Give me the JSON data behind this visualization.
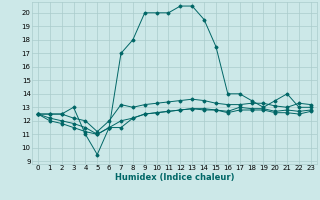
{
  "xlabel": "Humidex (Indice chaleur)",
  "background_color": "#cce8e8",
  "grid_color": "#aacccc",
  "line_color": "#006666",
  "xlim": [
    -0.5,
    23.5
  ],
  "ylim": [
    8.8,
    20.8
  ],
  "yticks": [
    9,
    10,
    11,
    12,
    13,
    14,
    15,
    16,
    17,
    18,
    19,
    20
  ],
  "xticks": [
    0,
    1,
    2,
    3,
    4,
    5,
    6,
    7,
    8,
    9,
    10,
    11,
    12,
    13,
    14,
    15,
    16,
    17,
    18,
    19,
    20,
    21,
    22,
    23
  ],
  "series": [
    {
      "x": [
        0,
        1,
        2,
        3,
        4,
        5,
        6,
        7,
        8,
        9,
        10,
        11,
        12,
        13,
        14,
        15,
        16,
        17,
        18,
        19,
        20,
        21,
        22,
        23
      ],
      "y": [
        12.5,
        12.5,
        12.5,
        13.0,
        11.0,
        9.5,
        11.5,
        17.0,
        18.0,
        20.0,
        20.0,
        20.0,
        20.5,
        20.5,
        19.5,
        17.5,
        14.0,
        14.0,
        13.5,
        13.0,
        13.5,
        14.0,
        13.0,
        13.0
      ]
    },
    {
      "x": [
        0,
        1,
        2,
        3,
        4,
        5,
        6,
        7,
        8,
        9,
        10,
        11,
        12,
        13,
        14,
        15,
        16,
        17,
        18,
        19,
        20,
        21,
        22,
        23
      ],
      "y": [
        12.5,
        12.5,
        12.5,
        12.2,
        12.0,
        11.2,
        12.0,
        13.2,
        13.0,
        13.2,
        13.3,
        13.4,
        13.5,
        13.6,
        13.5,
        13.3,
        13.2,
        13.2,
        13.3,
        13.3,
        13.1,
        13.0,
        13.3,
        13.2
      ]
    },
    {
      "x": [
        0,
        1,
        2,
        3,
        4,
        5,
        6,
        7,
        8,
        9,
        10,
        11,
        12,
        13,
        14,
        15,
        16,
        17,
        18,
        19,
        20,
        21,
        22,
        23
      ],
      "y": [
        12.5,
        12.2,
        12.0,
        11.8,
        11.5,
        11.0,
        11.5,
        11.5,
        12.2,
        12.5,
        12.6,
        12.7,
        12.8,
        12.9,
        12.9,
        12.8,
        12.7,
        13.0,
        12.9,
        12.9,
        12.7,
        12.8,
        12.7,
        12.8
      ]
    },
    {
      "x": [
        0,
        1,
        2,
        3,
        4,
        5,
        6,
        7,
        8,
        9,
        10,
        11,
        12,
        13,
        14,
        15,
        16,
        17,
        18,
        19,
        20,
        21,
        22,
        23
      ],
      "y": [
        12.5,
        12.0,
        11.8,
        11.5,
        11.2,
        11.0,
        11.5,
        12.0,
        12.2,
        12.5,
        12.6,
        12.7,
        12.8,
        12.9,
        12.8,
        12.8,
        12.6,
        12.8,
        12.8,
        12.8,
        12.6,
        12.6,
        12.5,
        12.7
      ]
    }
  ]
}
